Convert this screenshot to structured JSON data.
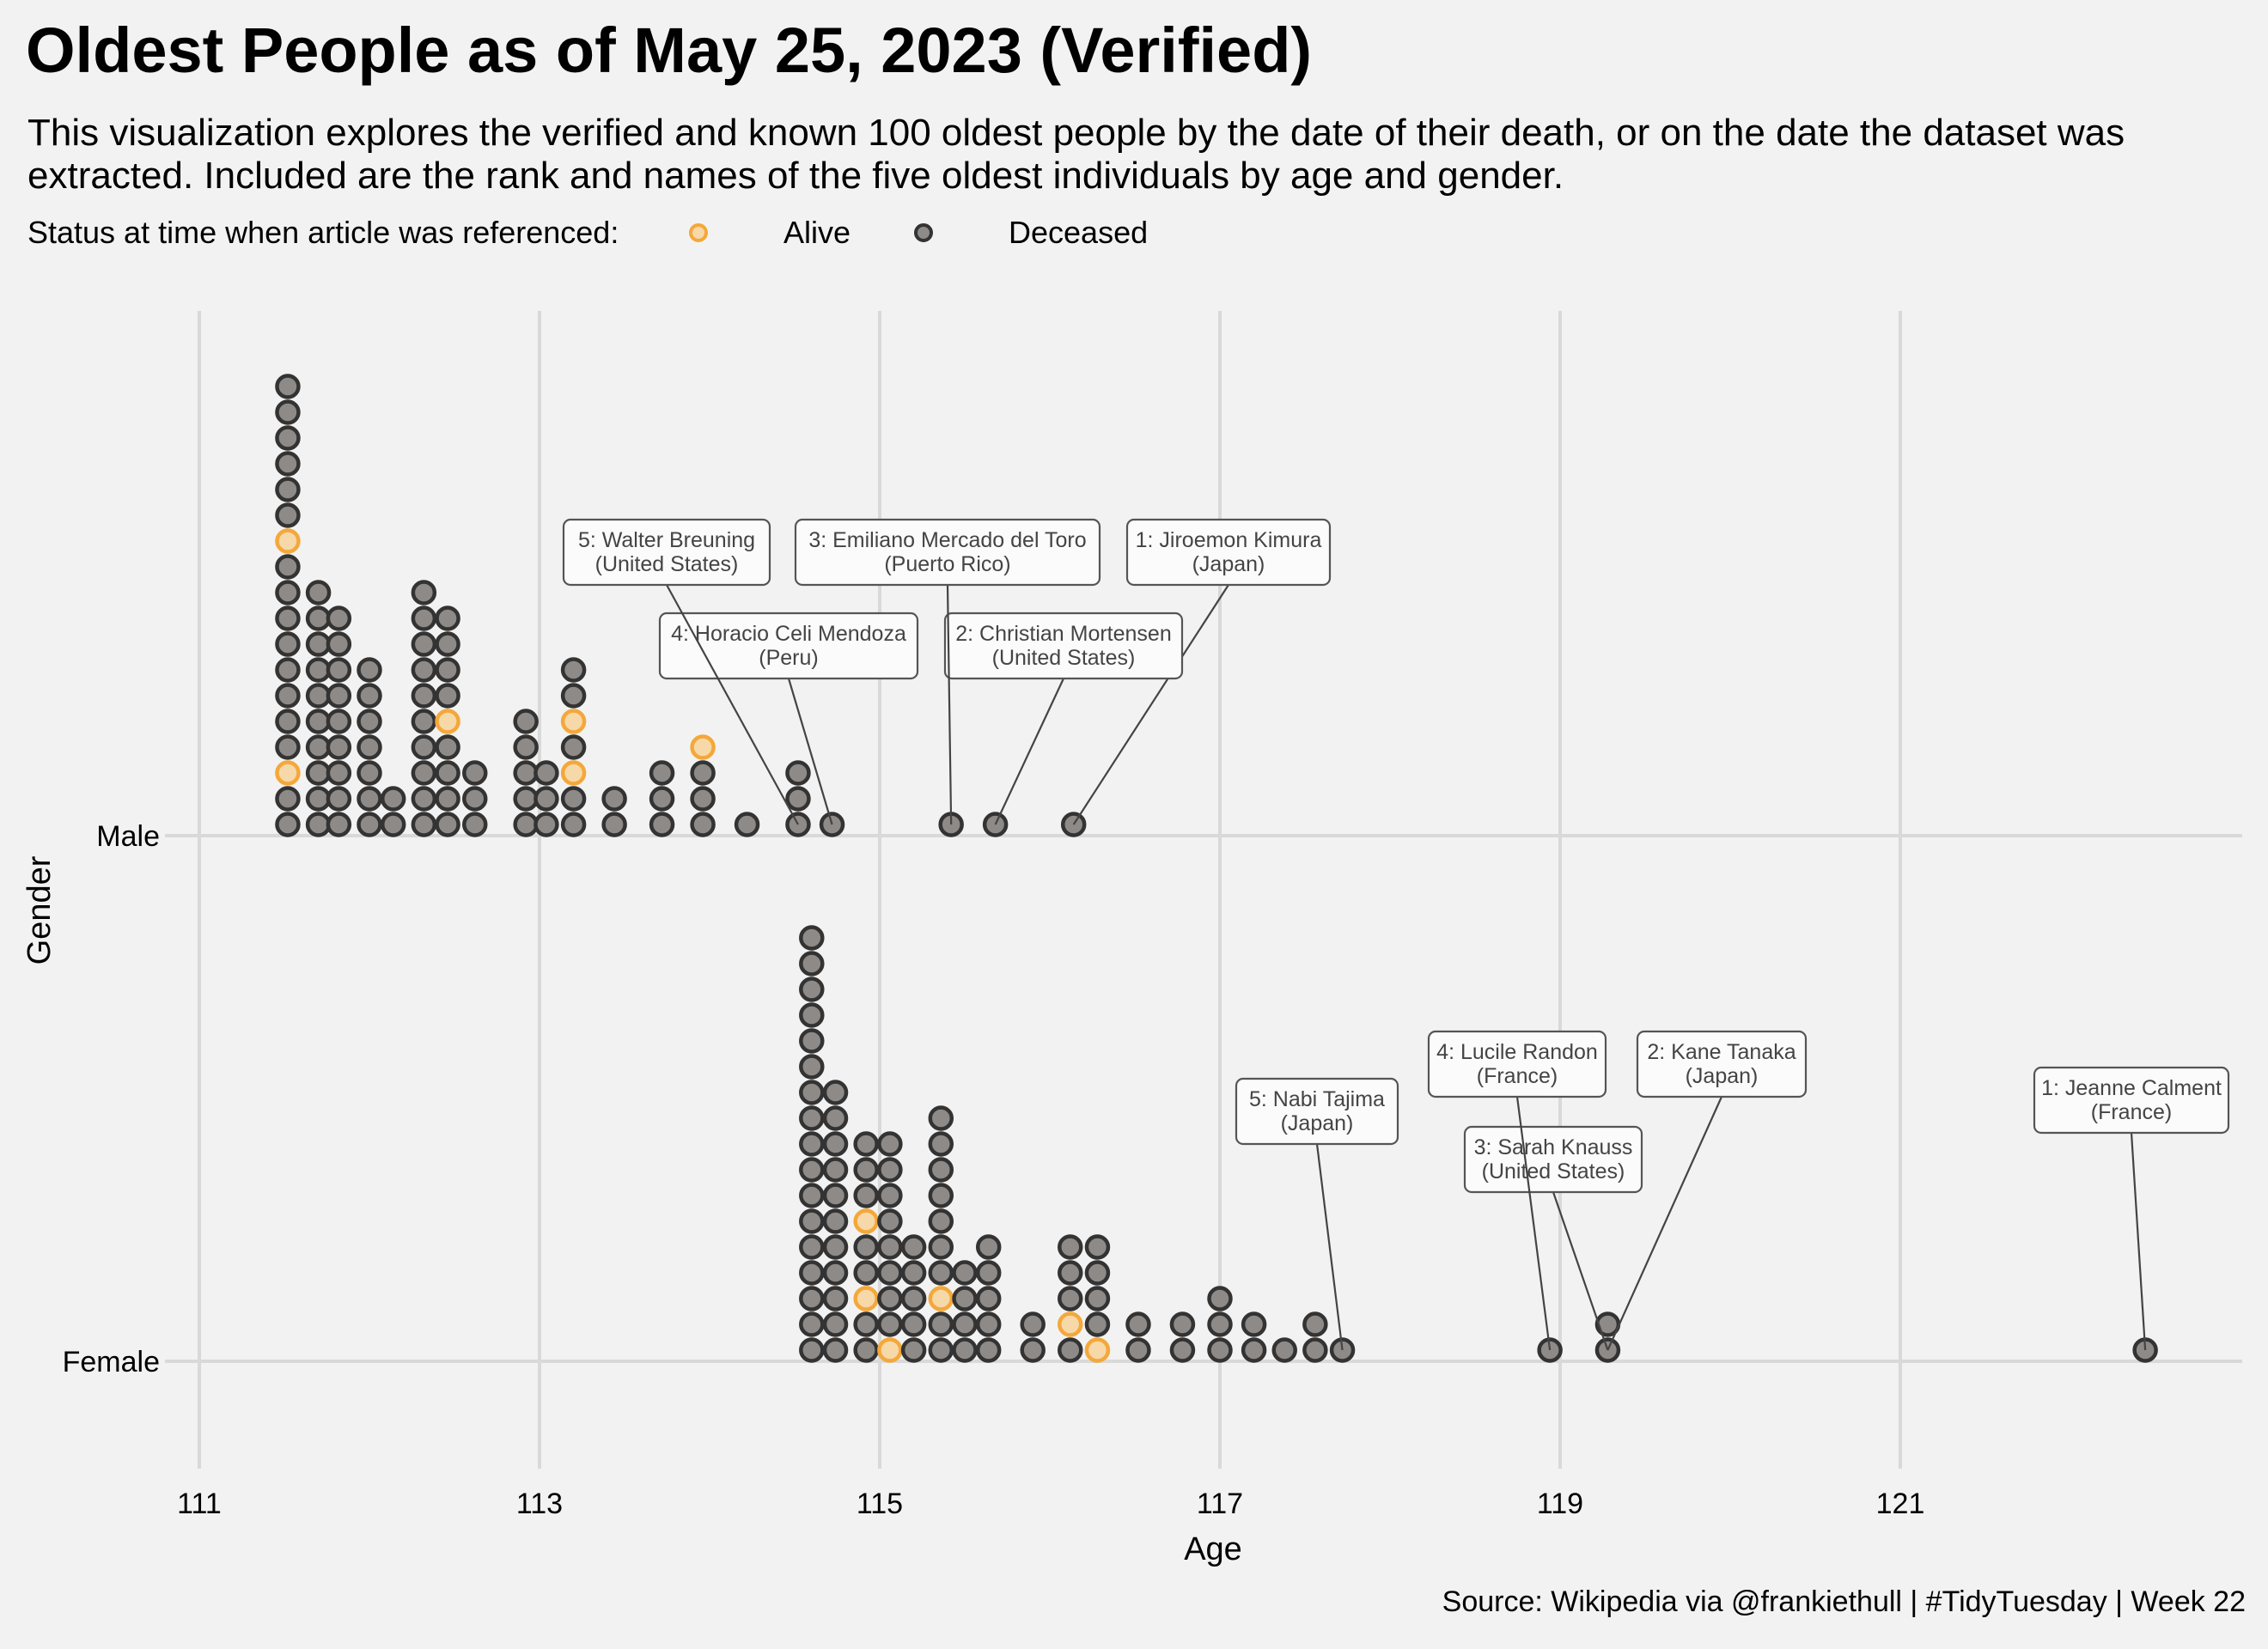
{
  "chart_data": {
    "type": "scatter",
    "title": "Oldest People as of May 25, 2023 (Verified)",
    "subtitle": "This visualization explores the verified and known 100 oldest people by the date of their death, or on the date the dataset was extracted. Included are the rank and names of the five oldest individuals by age and gender.",
    "xlabel": "Age",
    "ylabel": "Gender",
    "xlim": [
      110.9,
      122.99
    ],
    "xticks": [
      111,
      113,
      115,
      117,
      119,
      121
    ],
    "categories": [
      "Male",
      "Female"
    ],
    "legend": {
      "title": "Status at time when article was referenced:",
      "placement": "top-left",
      "items": [
        {
          "label": "Alive",
          "color": "#f4a83a",
          "fill": "#f7d8a8"
        },
        {
          "label": "Deceased",
          "color": "#333333",
          "fill": "#8e8a87"
        }
      ]
    },
    "grid": true,
    "caption": "Source: Wikipedia via @frankiethull | #TidyTuesday | Week 22",
    "series": [
      {
        "gender": "Male",
        "stacks": [
          {
            "age": 111.52,
            "n": 18,
            "alive": [
              3,
              12
            ]
          },
          {
            "age": 111.7,
            "n": 10,
            "alive": []
          },
          {
            "age": 111.82,
            "n": 9,
            "alive": []
          },
          {
            "age": 112.0,
            "n": 7,
            "alive": []
          },
          {
            "age": 112.14,
            "n": 2,
            "alive": []
          },
          {
            "age": 112.32,
            "n": 10,
            "alive": []
          },
          {
            "age": 112.46,
            "n": 9,
            "alive": [
              5
            ]
          },
          {
            "age": 112.62,
            "n": 3,
            "alive": []
          },
          {
            "age": 112.92,
            "n": 5,
            "alive": []
          },
          {
            "age": 113.04,
            "n": 3,
            "alive": []
          },
          {
            "age": 113.2,
            "n": 7,
            "alive": [
              3,
              5
            ]
          },
          {
            "age": 113.44,
            "n": 2,
            "alive": []
          },
          {
            "age": 113.72,
            "n": 3,
            "alive": []
          },
          {
            "age": 113.96,
            "n": 4,
            "alive": [
              4
            ]
          },
          {
            "age": 114.22,
            "n": 1,
            "alive": []
          },
          {
            "age": 114.52,
            "n": 3,
            "alive": []
          },
          {
            "age": 114.72,
            "n": 1,
            "alive": []
          },
          {
            "age": 115.42,
            "n": 1,
            "alive": []
          },
          {
            "age": 115.68,
            "n": 1,
            "alive": []
          },
          {
            "age": 116.14,
            "n": 1,
            "alive": []
          }
        ],
        "labels": [
          {
            "rank": 1,
            "name": "Jiroemon Kimura",
            "country": "Japan",
            "age": 116.14
          },
          {
            "rank": 2,
            "name": "Christian Mortensen",
            "country": "United States",
            "age": 115.68
          },
          {
            "rank": 3,
            "name": "Emiliano Mercado del Toro",
            "country": "Puerto Rico",
            "age": 115.42
          },
          {
            "rank": 4,
            "name": "Horacio Celi Mendoza",
            "country": "Peru",
            "age": 114.72
          },
          {
            "rank": 5,
            "name": "Walter Breuning",
            "country": "United States",
            "age": 114.52
          }
        ]
      },
      {
        "gender": "Female",
        "stacks": [
          {
            "age": 114.6,
            "n": 17,
            "alive": []
          },
          {
            "age": 114.74,
            "n": 11,
            "alive": []
          },
          {
            "age": 114.92,
            "n": 9,
            "alive": [
              3,
              6
            ]
          },
          {
            "age": 115.06,
            "n": 9,
            "alive": [
              1
            ]
          },
          {
            "age": 115.2,
            "n": 5,
            "alive": []
          },
          {
            "age": 115.36,
            "n": 10,
            "alive": [
              3
            ]
          },
          {
            "age": 115.5,
            "n": 4,
            "alive": []
          },
          {
            "age": 115.64,
            "n": 5,
            "alive": []
          },
          {
            "age": 115.9,
            "n": 2,
            "alive": []
          },
          {
            "age": 116.12,
            "n": 5,
            "alive": [
              2
            ]
          },
          {
            "age": 116.28,
            "n": 5,
            "alive": [
              1
            ]
          },
          {
            "age": 116.52,
            "n": 2,
            "alive": []
          },
          {
            "age": 116.78,
            "n": 2,
            "alive": []
          },
          {
            "age": 117.0,
            "n": 3,
            "alive": []
          },
          {
            "age": 117.2,
            "n": 2,
            "alive": []
          },
          {
            "age": 117.38,
            "n": 1,
            "alive": []
          },
          {
            "age": 117.56,
            "n": 2,
            "alive": []
          },
          {
            "age": 117.72,
            "n": 1,
            "alive": []
          },
          {
            "age": 118.94,
            "n": 1,
            "alive": []
          },
          {
            "age": 119.28,
            "n": 2,
            "alive": []
          },
          {
            "age": 122.44,
            "n": 1,
            "alive": []
          }
        ],
        "labels": [
          {
            "rank": 1,
            "name": "Jeanne Calment",
            "country": "France",
            "age": 122.44
          },
          {
            "rank": 2,
            "name": "Kane Tanaka",
            "country": "Japan",
            "age": 119.28
          },
          {
            "rank": 3,
            "name": "Sarah Knauss",
            "country": "United States",
            "age": 119.28
          },
          {
            "rank": 4,
            "name": "Lucile Randon",
            "country": "France",
            "age": 118.94
          },
          {
            "rank": 5,
            "name": "Nabi Tajima",
            "country": "Japan",
            "age": 117.72
          }
        ]
      }
    ]
  }
}
